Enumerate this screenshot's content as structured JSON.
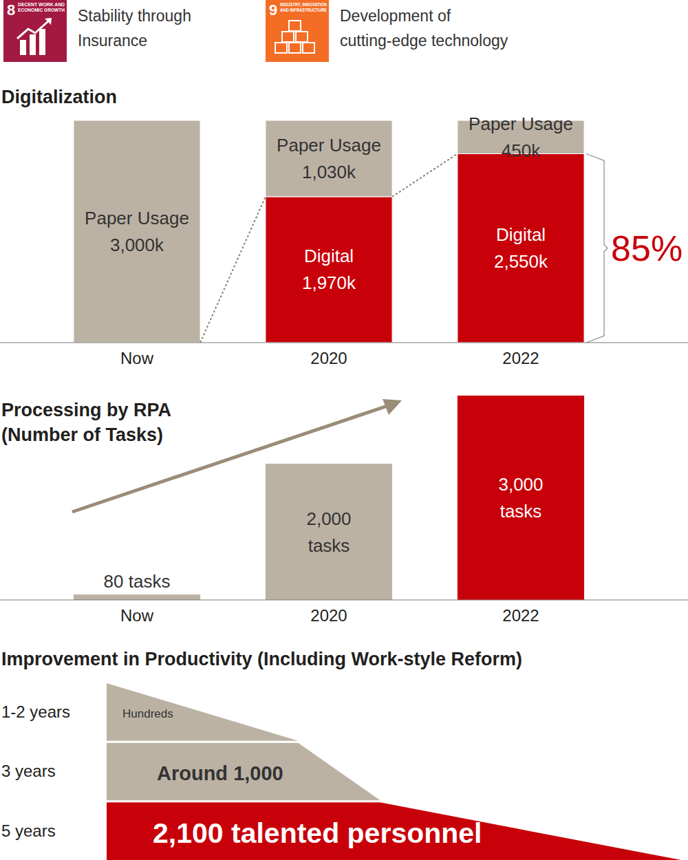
{
  "header": {
    "goals": [
      {
        "number": 8,
        "icon_lines": [
          "DECENT WORK AND",
          "ECONOMIC GROWTH"
        ],
        "text_lines": [
          "Stability through",
          "Insurance"
        ],
        "color": "#a21942"
      },
      {
        "number": 9,
        "icon_lines": [
          "INDUSTRY, INNOVATION",
          "AND INFRASTRUCTURE"
        ],
        "text_lines": [
          "Development of",
          "cutting-edge technology"
        ],
        "color": "#f36d25"
      }
    ]
  },
  "chart_data": [
    {
      "type": "bar",
      "stacked": true,
      "title": "Digitalization",
      "categories": [
        "Now",
        "2020",
        "2022"
      ],
      "series": [
        {
          "name": "Digital",
          "color": "#c8000a",
          "values": [
            null,
            1970,
            2550
          ],
          "value_labels": [
            null,
            "1,970k",
            "2,550k"
          ]
        },
        {
          "name": "Paper Usage",
          "color": "#bcb2a4",
          "values": [
            3000,
            1030,
            450
          ],
          "value_labels": [
            "3,000k",
            "1,030k",
            "450k"
          ]
        }
      ],
      "ylim": [
        0,
        3000
      ],
      "tick_labels": "x",
      "data_labels": true,
      "annotation": "85%"
    },
    {
      "type": "bar",
      "title": "Processing by RPA",
      "subtitle": "(Number of Tasks)",
      "categories": [
        "Now",
        "2020",
        "2022"
      ],
      "values": [
        80,
        2000,
        3000
      ],
      "value_labels": [
        "80 tasks",
        "2,000 tasks",
        "3,000 tasks"
      ],
      "colors": [
        "#bcb2a4",
        "#bcb2a4",
        "#c8000a"
      ],
      "ylim": [
        0,
        3000
      ],
      "tick_labels": "x",
      "data_labels": true
    },
    {
      "type": "bar",
      "orientation": "horizontal",
      "title": "Improvement in Productivity (Including Work-style Reform)",
      "categories": [
        "1-2 years",
        "3 years",
        "5 years"
      ],
      "values": [
        700,
        1000,
        2100
      ],
      "value_labels": [
        "Hundreds",
        "Around 1,000",
        "2,100 talented personnel"
      ],
      "colors": [
        "#bcb2a4",
        "#bcb2a4",
        "#c8000a"
      ],
      "xlim": [
        0,
        2100
      ],
      "tick_labels": "y",
      "data_labels": true
    }
  ]
}
